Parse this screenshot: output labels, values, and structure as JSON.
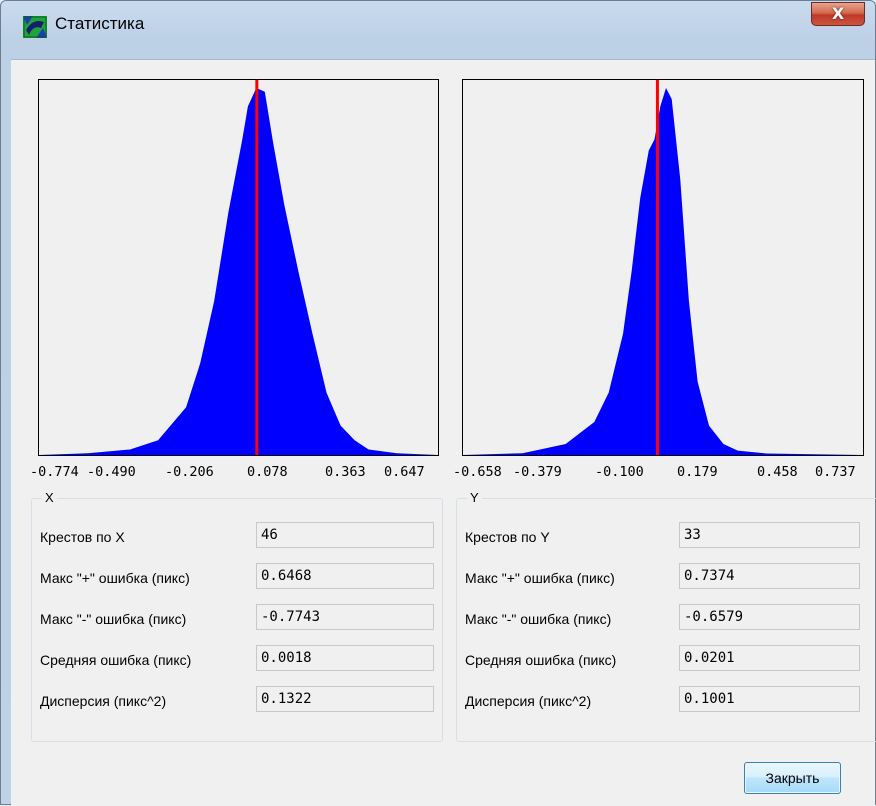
{
  "window": {
    "title": "Статистика",
    "close_glyph": "X"
  },
  "charts": {
    "x_ticks": [
      "-0.774",
      "-0.490",
      "-0.206",
      "0.078",
      "0.363",
      "0.647"
    ],
    "y_ticks": [
      "-0.658",
      "-0.379",
      "-0.100",
      "0.179",
      "0.458",
      "0.737"
    ]
  },
  "chart_data": [
    {
      "type": "area",
      "xlim": [
        -0.774,
        0.647
      ],
      "tick_labels": [
        "-0.774",
        "-0.490",
        "-0.206",
        "0.078",
        "0.363",
        "0.647"
      ],
      "series_color": "#0000ff",
      "marker_color": "#ff0000",
      "mean_marker": 0.0018,
      "profile": [
        {
          "x": -0.774,
          "y": 0
        },
        {
          "x": -0.6,
          "y": 0.005
        },
        {
          "x": -0.45,
          "y": 0.015
        },
        {
          "x": -0.35,
          "y": 0.04
        },
        {
          "x": -0.25,
          "y": 0.13
        },
        {
          "x": -0.2,
          "y": 0.25
        },
        {
          "x": -0.15,
          "y": 0.42
        },
        {
          "x": -0.1,
          "y": 0.66
        },
        {
          "x": -0.05,
          "y": 0.86
        },
        {
          "x": -0.03,
          "y": 0.95
        },
        {
          "x": 0.0,
          "y": 1.0
        },
        {
          "x": 0.03,
          "y": 0.99
        },
        {
          "x": 0.06,
          "y": 0.85
        },
        {
          "x": 0.1,
          "y": 0.68
        },
        {
          "x": 0.15,
          "y": 0.5
        },
        {
          "x": 0.2,
          "y": 0.33
        },
        {
          "x": 0.25,
          "y": 0.17
        },
        {
          "x": 0.3,
          "y": 0.08
        },
        {
          "x": 0.35,
          "y": 0.04
        },
        {
          "x": 0.4,
          "y": 0.015
        },
        {
          "x": 0.5,
          "y": 0.005
        },
        {
          "x": 0.647,
          "y": 0
        }
      ]
    },
    {
      "type": "area",
      "xlim": [
        -0.658,
        0.737
      ],
      "tick_labels": [
        "-0.658",
        "-0.379",
        "-0.100",
        "0.179",
        "0.458",
        "0.737"
      ],
      "series_color": "#0000ff",
      "marker_color": "#ff0000",
      "mean_marker": 0.0201,
      "profile": [
        {
          "x": -0.658,
          "y": 0
        },
        {
          "x": -0.45,
          "y": 0.005
        },
        {
          "x": -0.3,
          "y": 0.03
        },
        {
          "x": -0.2,
          "y": 0.09
        },
        {
          "x": -0.15,
          "y": 0.17
        },
        {
          "x": -0.1,
          "y": 0.33
        },
        {
          "x": -0.07,
          "y": 0.5
        },
        {
          "x": -0.04,
          "y": 0.7
        },
        {
          "x": -0.01,
          "y": 0.83
        },
        {
          "x": 0.01,
          "y": 0.86
        },
        {
          "x": 0.03,
          "y": 0.95
        },
        {
          "x": 0.05,
          "y": 1.0
        },
        {
          "x": 0.07,
          "y": 0.97
        },
        {
          "x": 0.1,
          "y": 0.75
        },
        {
          "x": 0.13,
          "y": 0.42
        },
        {
          "x": 0.16,
          "y": 0.2
        },
        {
          "x": 0.2,
          "y": 0.08
        },
        {
          "x": 0.25,
          "y": 0.03
        },
        {
          "x": 0.3,
          "y": 0.012
        },
        {
          "x": 0.4,
          "y": 0.004
        },
        {
          "x": 0.737,
          "y": 0
        }
      ]
    }
  ],
  "group_x": {
    "title": "X",
    "rows": [
      {
        "label": "Крестов по X",
        "value": "46"
      },
      {
        "label": "Макс \"+\" ошибка (пикс)",
        "value": "0.6468"
      },
      {
        "label": "Макс \"-\" ошибка (пикс)",
        "value": "-0.7743"
      },
      {
        "label": "Средняя ошибка (пикс)",
        "value": "0.0018"
      },
      {
        "label": "Дисперсия  (пикс^2)",
        "value": "0.1322"
      }
    ]
  },
  "group_y": {
    "title": "Y",
    "rows": [
      {
        "label": "Крестов по Y",
        "value": "33"
      },
      {
        "label": "Макс \"+\" ошибка (пикс)",
        "value": "0.7374"
      },
      {
        "label": "Макс \"-\" ошибка (пикс)",
        "value": "-0.6579"
      },
      {
        "label": "Средняя ошибка (пикс)",
        "value": "0.0201"
      },
      {
        "label": "Дисперсия  (пикс^2)",
        "value": "0.1001"
      }
    ]
  },
  "buttons": {
    "close_label": "Закрыть"
  }
}
